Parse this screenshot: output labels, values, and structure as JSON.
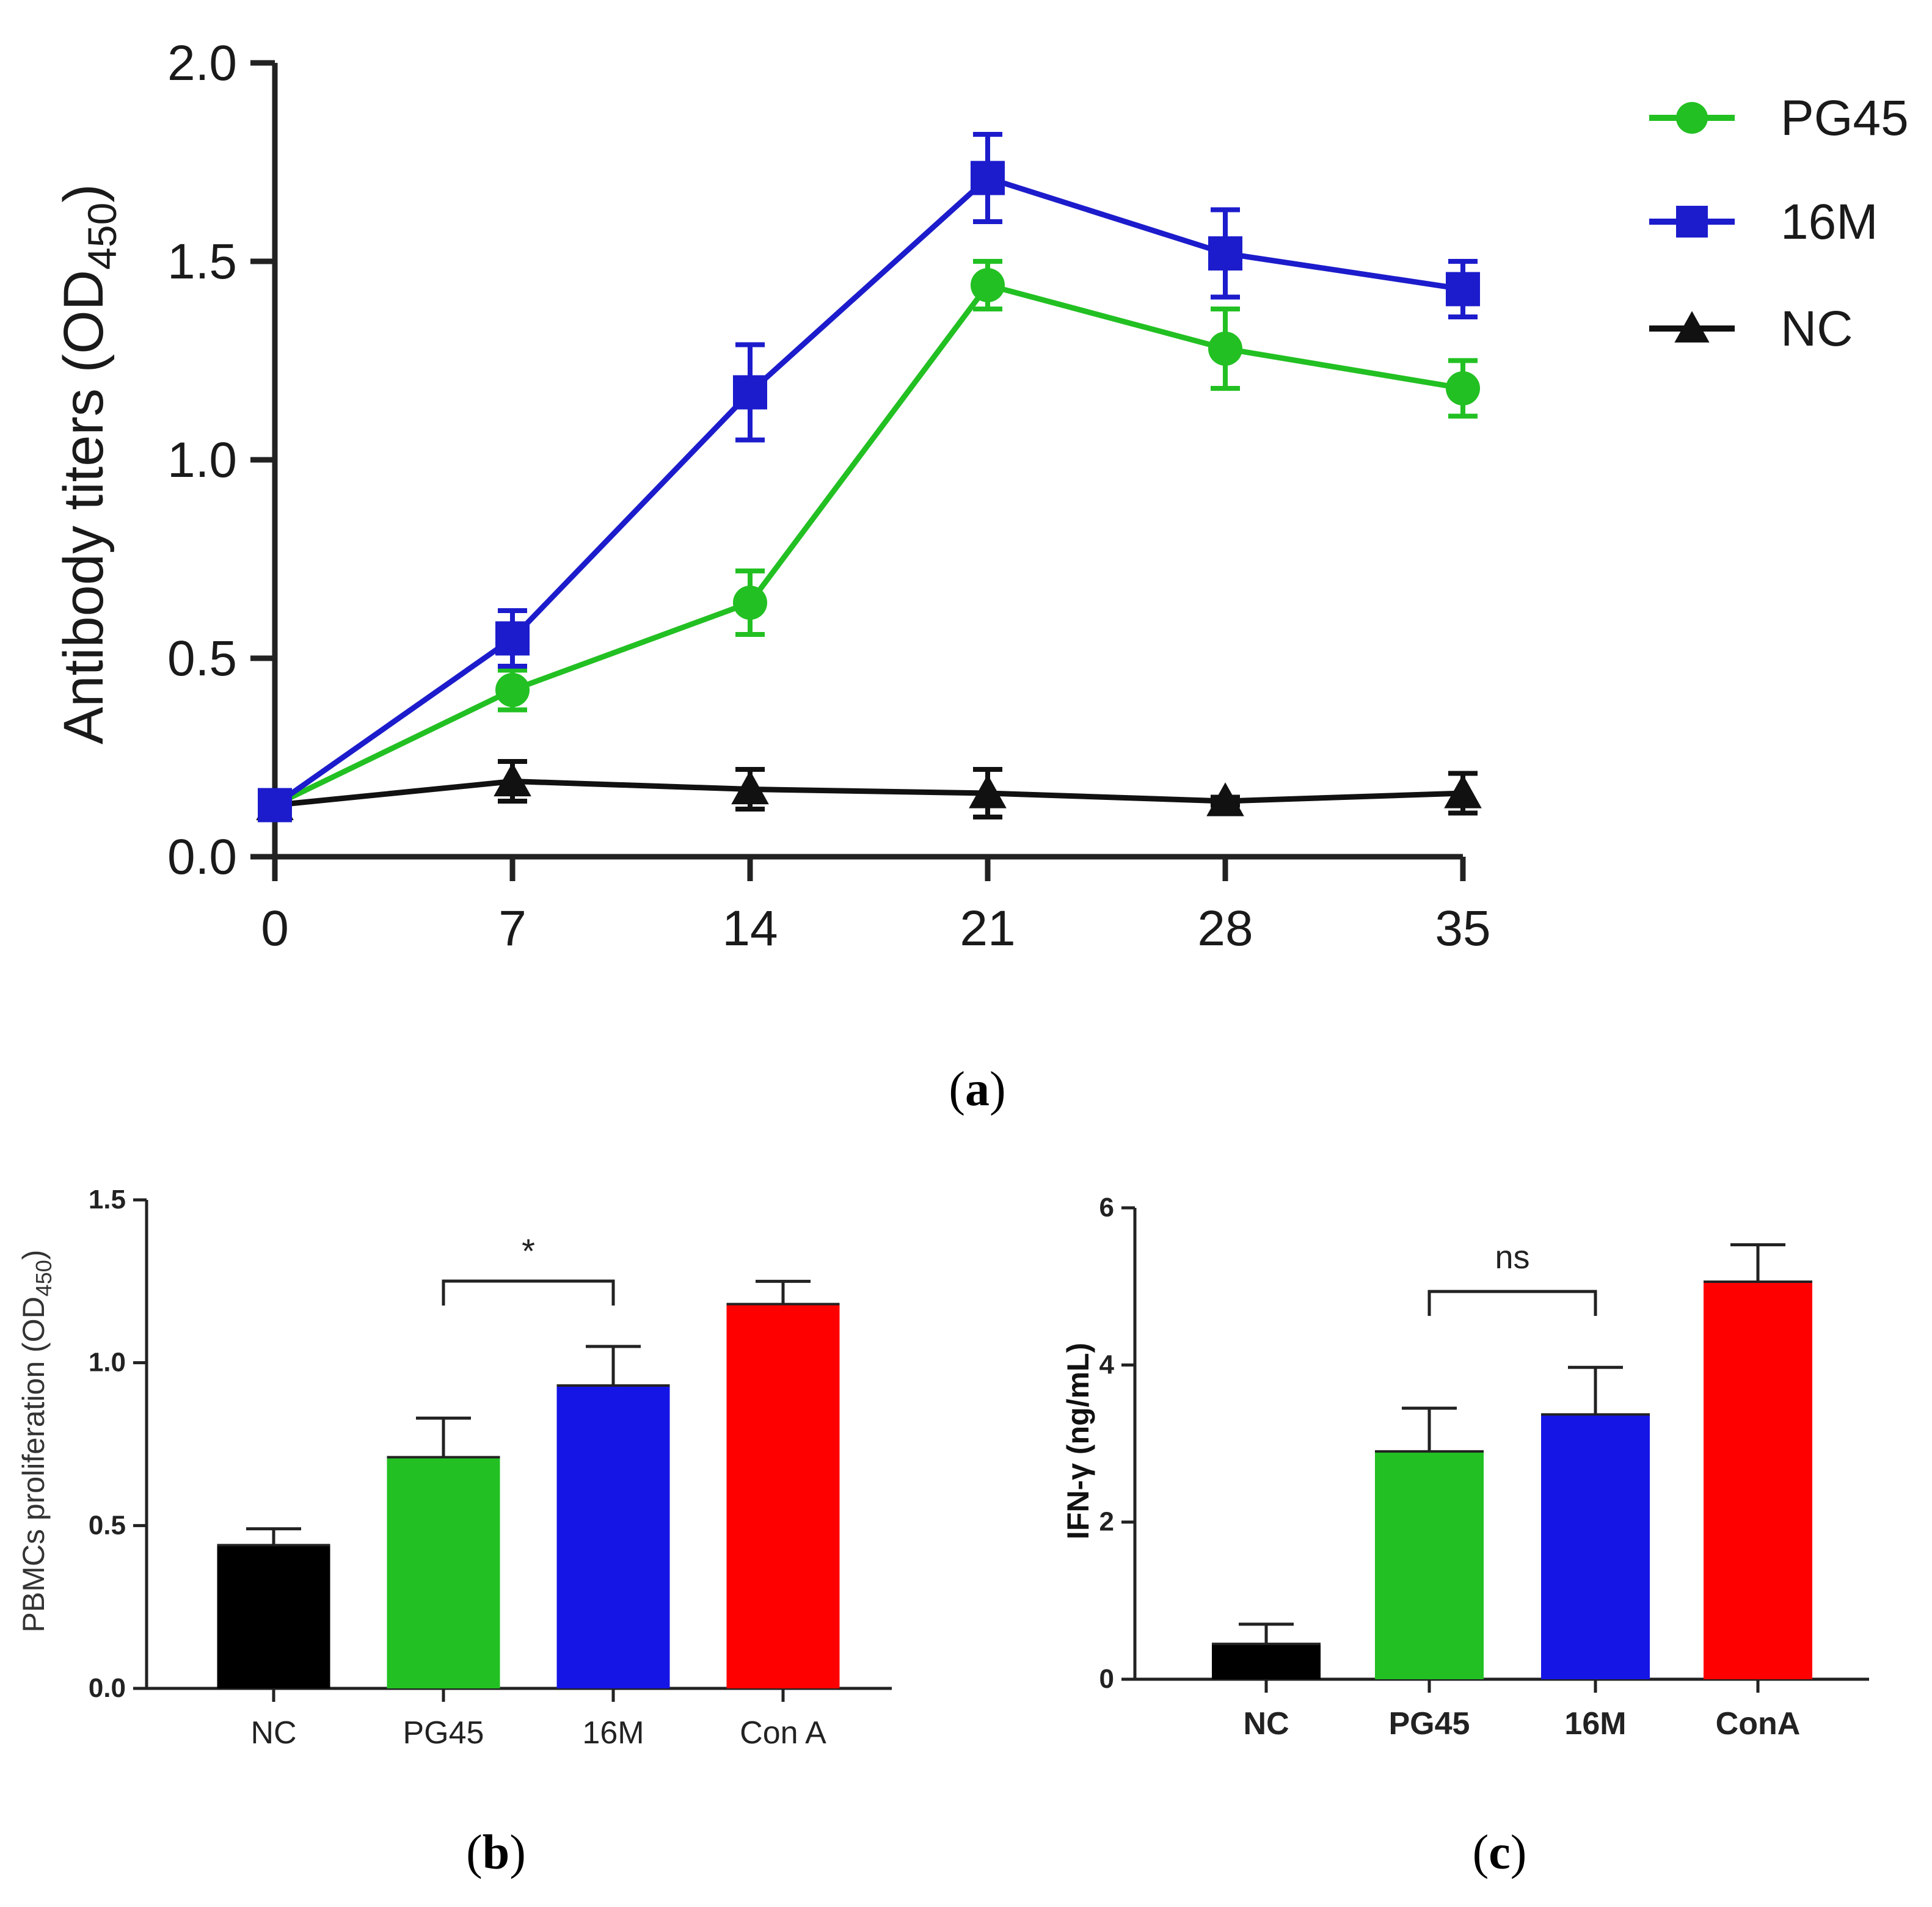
{
  "chart_data": [
    {
      "panel": "a",
      "type": "line",
      "caption": "a",
      "ylabel_main": "Antibody titers (OD",
      "ylabel_sub": "450",
      "ylabel_close": ")",
      "xlabel": "",
      "x": [
        0,
        7,
        14,
        21,
        28,
        35
      ],
      "xticks": [
        "0",
        "7",
        "14",
        "21",
        "28",
        "35"
      ],
      "ylim": [
        0,
        2
      ],
      "yticks": [
        "0.0",
        "0.5",
        "1.0",
        "1.5",
        "2.0"
      ],
      "legend_position": "top-right",
      "series": [
        {
          "name": "PG45",
          "color": "#22c022",
          "marker": "circle",
          "values": [
            0.13,
            0.42,
            0.64,
            1.44,
            1.28,
            1.18
          ],
          "errors": [
            0.02,
            0.05,
            0.08,
            0.06,
            0.1,
            0.07
          ]
        },
        {
          "name": "16M",
          "color": "#1c1ccc",
          "marker": "square",
          "values": [
            0.13,
            0.55,
            1.17,
            1.71,
            1.52,
            1.43
          ],
          "errors": [
            0.02,
            0.07,
            0.12,
            0.11,
            0.11,
            0.07
          ]
        },
        {
          "name": "NC",
          "color": "#111111",
          "marker": "triangle",
          "values": [
            0.13,
            0.19,
            0.17,
            0.16,
            0.14,
            0.16
          ],
          "errors": [
            0.02,
            0.05,
            0.05,
            0.06,
            0.01,
            0.05
          ]
        }
      ]
    },
    {
      "panel": "b",
      "type": "bar",
      "caption": "b",
      "ylabel_main": "PBMCs proliferation (OD",
      "ylabel_sub": "450",
      "ylabel_close": ")",
      "categories": [
        "NC",
        "PG45",
        "16M",
        "Con A"
      ],
      "values": [
        0.44,
        0.71,
        0.93,
        1.18
      ],
      "errors": [
        0.05,
        0.12,
        0.12,
        0.07
      ],
      "colors": [
        "#000000",
        "#22c022",
        "#1515e6",
        "#ff0000"
      ],
      "ylim": [
        0,
        1.5
      ],
      "yticks": [
        "0.0",
        "0.5",
        "1.0",
        "1.5"
      ],
      "significance": {
        "from": 1,
        "to": 2,
        "label": "*"
      }
    },
    {
      "panel": "c",
      "type": "bar",
      "caption": "c",
      "ylabel_main": "IFN-γ (ng/mL)",
      "categories": [
        "NC",
        "PG45",
        "16M",
        "ConA"
      ],
      "values": [
        0.45,
        2.9,
        3.37,
        5.06
      ],
      "errors": [
        0.25,
        0.55,
        0.6,
        0.47
      ],
      "colors": [
        "#000000",
        "#22c022",
        "#1515e6",
        "#ff0000"
      ],
      "ylim": [
        0,
        6
      ],
      "yticks": [
        "0",
        "2",
        "4",
        "6"
      ],
      "significance": {
        "from": 1,
        "to": 2,
        "label": "ns"
      }
    }
  ]
}
